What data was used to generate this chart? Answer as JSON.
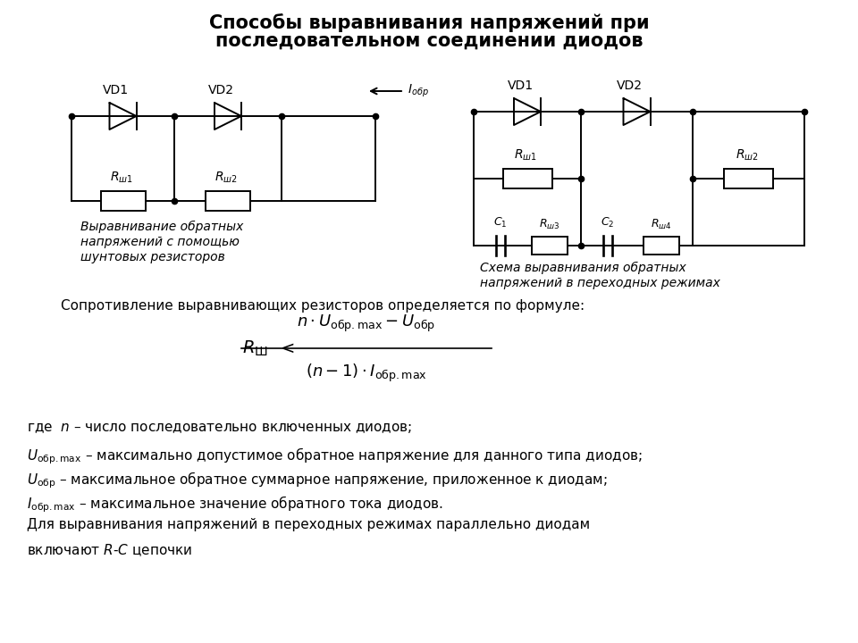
{
  "title_line1": "Способы выравнивания напряжений при",
  "title_line2": "последовательном соединении диодов",
  "title_fontsize": 15,
  "bg_color": "#ffffff",
  "line_color": "#000000",
  "caption1_line1": "Выравнивание обратных",
  "caption1_line2": "напряжений с помощью",
  "caption1_line3": "шунтовых резисторов",
  "caption2_line1": "Схема выравнивания обратных",
  "caption2_line2": "напряжений в переходных режимах",
  "formula_text": "Сопротивление выравнивающих резисторов определяется по формуле:"
}
